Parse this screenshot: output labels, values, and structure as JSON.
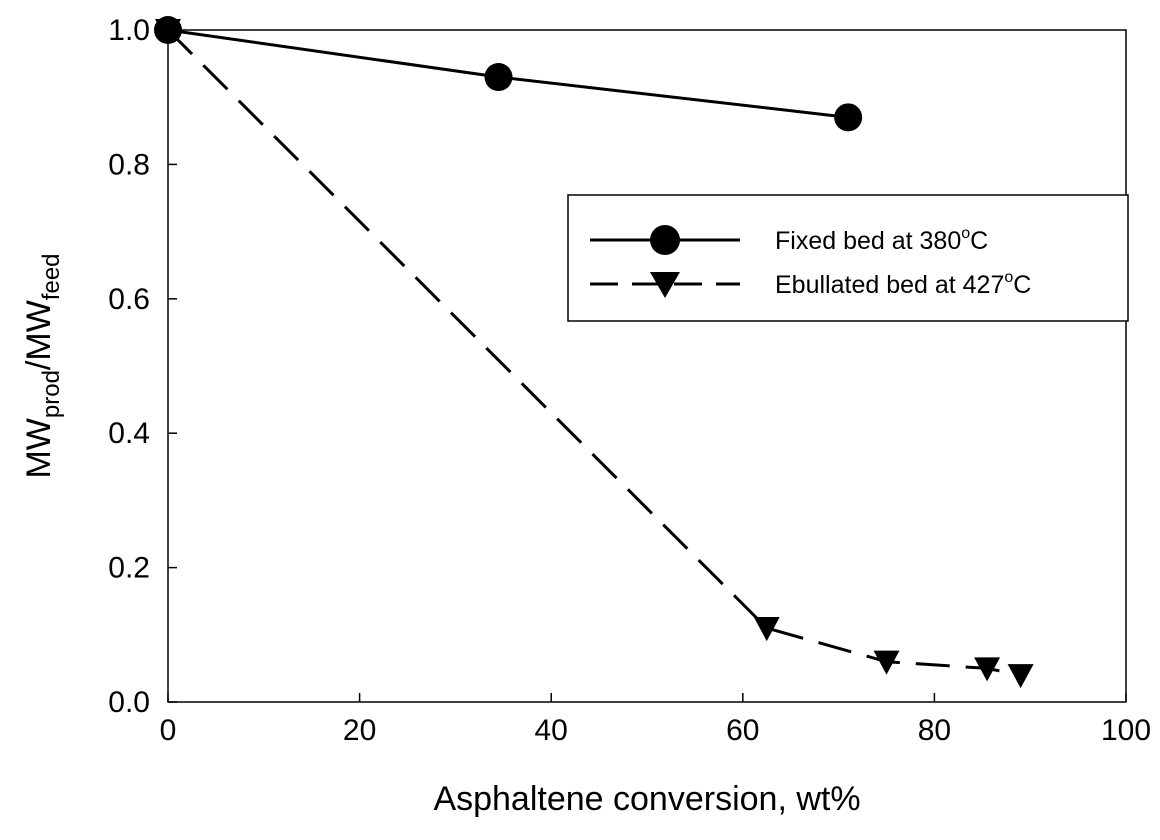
{
  "chart_data": {
    "type": "line",
    "title": "",
    "xlabel": "Asphaltene conversion, wt%",
    "ylabel": {
      "main1": "MW",
      "sub1": "prod",
      "sep": "/",
      "main2": "MW",
      "sub2": "feed"
    },
    "xlim": [
      0,
      100
    ],
    "ylim": [
      0.0,
      1.0
    ],
    "xticks": [
      0,
      20,
      40,
      60,
      80,
      100
    ],
    "yticks": [
      0.0,
      0.2,
      0.4,
      0.6,
      0.8,
      1.0
    ],
    "xtick_labels": [
      "0",
      "20",
      "40",
      "60",
      "80",
      "100"
    ],
    "ytick_labels": [
      "0.0",
      "0.2",
      "0.4",
      "0.6",
      "0.8",
      "1.0"
    ],
    "grid": false,
    "legend_position": "right",
    "series": [
      {
        "name": "Fixed bed at 380",
        "unit_sup": "o",
        "unit_tail": "C",
        "line_style": "solid",
        "marker": "circle",
        "color": "#000000",
        "x": [
          0,
          34.5,
          71
        ],
        "y": [
          1.0,
          0.93,
          0.87
        ]
      },
      {
        "name": "Ebullated bed at 427",
        "unit_sup": "o",
        "unit_tail": "C",
        "line_style": "dashed",
        "marker": "triangle-down",
        "color": "#000000",
        "x": [
          0,
          62.5,
          75,
          85.5,
          89
        ],
        "y": [
          1.0,
          0.11,
          0.06,
          0.05,
          0.04
        ]
      }
    ]
  }
}
